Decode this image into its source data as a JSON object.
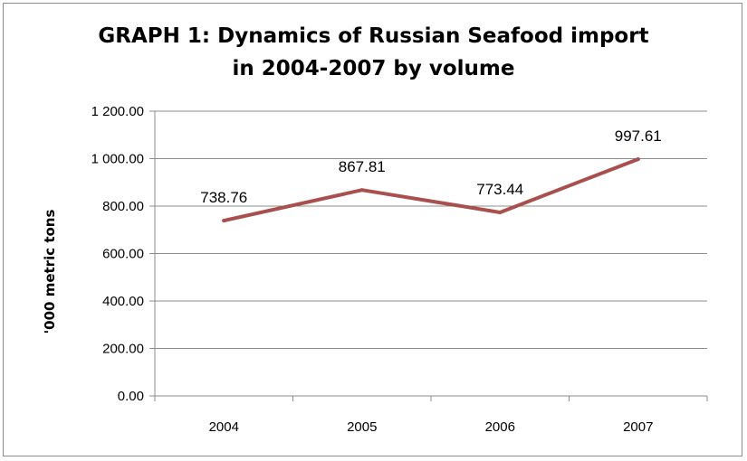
{
  "chart_data": {
    "type": "line",
    "title_lines": [
      "GRAPH 1: Dynamics of Russian Seafood import",
      "in 2004-2007 by volume"
    ],
    "ylabel": "'000 metric tons",
    "xlabel": "",
    "categories": [
      "2004",
      "2005",
      "2006",
      "2007"
    ],
    "series": [
      {
        "values": [
          738.76,
          867.81,
          773.44,
          997.61
        ],
        "labels": [
          "738.76",
          "867.81",
          "773.44",
          "997.61"
        ],
        "color": "#a9504f"
      }
    ],
    "ylim": [
      0,
      1200
    ],
    "yticks": [
      0,
      200,
      400,
      600,
      800,
      1000,
      1200
    ],
    "ytick_labels": [
      "0.00",
      "200.00",
      "400.00",
      "600.00",
      "800.00",
      "1 000.00",
      "1 200.00"
    ],
    "grid": true,
    "legend": "none"
  }
}
